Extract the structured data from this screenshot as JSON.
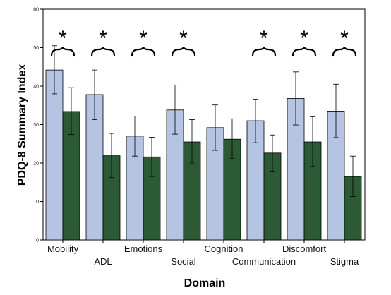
{
  "chart_data": {
    "type": "bar",
    "xlabel": "Domain",
    "ylabel": "PDQ-8 Summary Index",
    "ylim": [
      0,
      60
    ],
    "yticks": [
      0,
      10,
      20,
      30,
      40,
      50,
      60
    ],
    "grid": false,
    "legend": "none",
    "categories": [
      "Mobility",
      "ADL",
      "Emotions",
      "Social",
      "Cognition",
      "Communication",
      "Discomfort",
      "Stigma"
    ],
    "label_row": [
      "top",
      "bottom",
      "top",
      "bottom",
      "top",
      "bottom",
      "top",
      "bottom"
    ],
    "series": [
      {
        "values": [
          44.2,
          37.8,
          27.0,
          33.8,
          29.2,
          31.0,
          36.8,
          33.5
        ],
        "error_low": [
          38.0,
          31.3,
          21.8,
          27.5,
          23.3,
          25.3,
          29.9,
          26.6
        ],
        "error_high": [
          50.5,
          44.2,
          32.2,
          40.3,
          35.1,
          36.6,
          43.7,
          40.5
        ],
        "color": "#b4c4e2"
      },
      {
        "values": [
          33.4,
          21.9,
          21.6,
          25.5,
          26.2,
          22.6,
          25.5,
          16.5
        ],
        "error_low": [
          27.4,
          16.2,
          16.5,
          19.8,
          21.1,
          17.7,
          19.1,
          11.3
        ],
        "error_high": [
          39.6,
          27.7,
          26.7,
          31.3,
          31.5,
          27.3,
          32.0,
          21.8
        ],
        "color": "#2c5a35"
      }
    ],
    "significance_marker": "*",
    "significant": [
      true,
      true,
      true,
      true,
      false,
      true,
      true,
      true
    ]
  }
}
